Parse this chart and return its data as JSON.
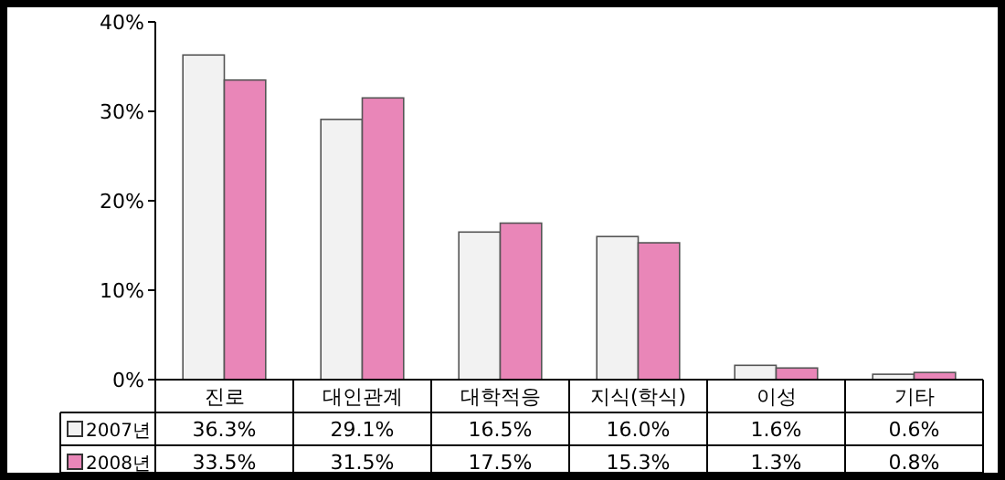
{
  "chart_data": {
    "type": "bar",
    "categories": [
      "진로",
      "대인관계",
      "대학적응",
      "지식(학식)",
      "이성",
      "기타"
    ],
    "series": [
      {
        "name": "2007년",
        "color": "#f2f2f2",
        "values": [
          36.3,
          29.1,
          16.5,
          16.0,
          1.6,
          0.6
        ],
        "value_labels": [
          "36.3%",
          "29.1%",
          "16.5%",
          "16.0%",
          "1.6%",
          "0.6%"
        ]
      },
      {
        "name": "2008년",
        "color": "#e986b8",
        "values": [
          33.5,
          31.5,
          17.5,
          15.3,
          1.3,
          0.8
        ],
        "value_labels": [
          "33.5%",
          "31.5%",
          "17.5%",
          "15.3%",
          "1.3%",
          "0.8%"
        ]
      }
    ],
    "ylim": [
      0,
      40
    ],
    "yticks": [
      {
        "value": 0,
        "label": "0%"
      },
      {
        "value": 10,
        "label": "10%"
      },
      {
        "value": 20,
        "label": "20%"
      },
      {
        "value": 30,
        "label": "30%"
      },
      {
        "value": 40,
        "label": "40%"
      }
    ],
    "grid": false,
    "legend": "bottom"
  }
}
